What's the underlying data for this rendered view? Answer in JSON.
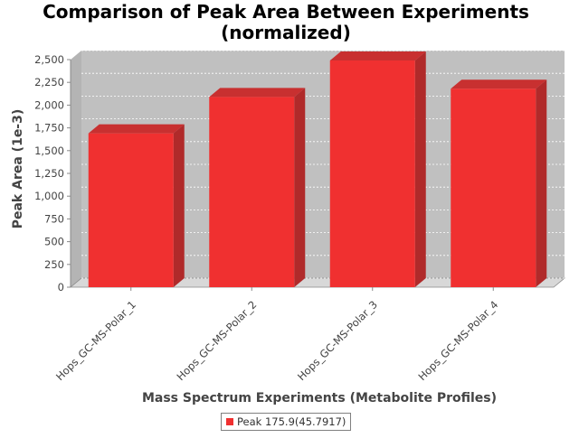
{
  "chart_data": {
    "type": "bar",
    "title_line1": "Comparison of Peak Area Between Experiments",
    "title_line2": "(normalized)",
    "xlabel": "Mass Spectrum Experiments (Metabolite Profiles)",
    "ylabel": "Peak Area (1e-3)",
    "categories": [
      "Hops_GC-MS-Polar_1",
      "Hops_GC-MS-Polar_2",
      "Hops_GC-MS-Polar_3",
      "Hops_GC-MS-Polar_4"
    ],
    "series": [
      {
        "name": "Peak 175.9(45.7917)",
        "values": [
          1690,
          2090,
          2490,
          2180
        ]
      }
    ],
    "ylim": [
      0,
      2500
    ],
    "yticks": [
      0,
      250,
      500,
      750,
      1000,
      1250,
      1500,
      1750,
      2000,
      2250,
      2500
    ],
    "ytick_labels": [
      "0",
      "250",
      "500",
      "750",
      "1,000",
      "1,250",
      "1,500",
      "1,750",
      "2,000",
      "2,250",
      "2,500"
    ],
    "grid": true,
    "legend_position": "bottom",
    "colors": {
      "bar_front": "#f03030",
      "bar_side": "#b02a2a",
      "bar_top": "#c83030",
      "plot_back": "#c0c0c0",
      "plot_floor": "#d8d8d8",
      "gridline": "#ffffff"
    }
  }
}
